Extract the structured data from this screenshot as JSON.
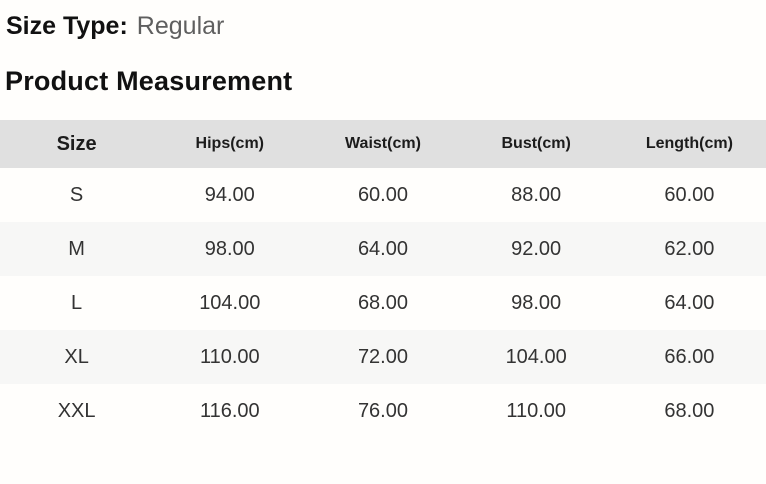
{
  "page": {
    "size_type_label": "Size Type:",
    "size_type_value": "Regular",
    "section_title": "Product Measurement"
  },
  "table": {
    "headers": [
      "Size",
      "Hips(cm)",
      "Waist(cm)",
      "Bust(cm)",
      "Length(cm)"
    ],
    "rows": [
      [
        "S",
        "94.00",
        "60.00",
        "88.00",
        "60.00"
      ],
      [
        "M",
        "98.00",
        "64.00",
        "92.00",
        "62.00"
      ],
      [
        "L",
        "104.00",
        "68.00",
        "98.00",
        "64.00"
      ],
      [
        "XL",
        "110.00",
        "72.00",
        "104.00",
        "66.00"
      ],
      [
        "XXL",
        "116.00",
        "76.00",
        "110.00",
        "68.00"
      ]
    ]
  },
  "colors": {
    "header_band_bg": "#e0e0e0",
    "alt_row_bg": "#f7f7f6",
    "heading_text": "#111111",
    "body_text": "#333333",
    "muted_text": "#5f5f5f",
    "page_bg": "#fffefc"
  }
}
